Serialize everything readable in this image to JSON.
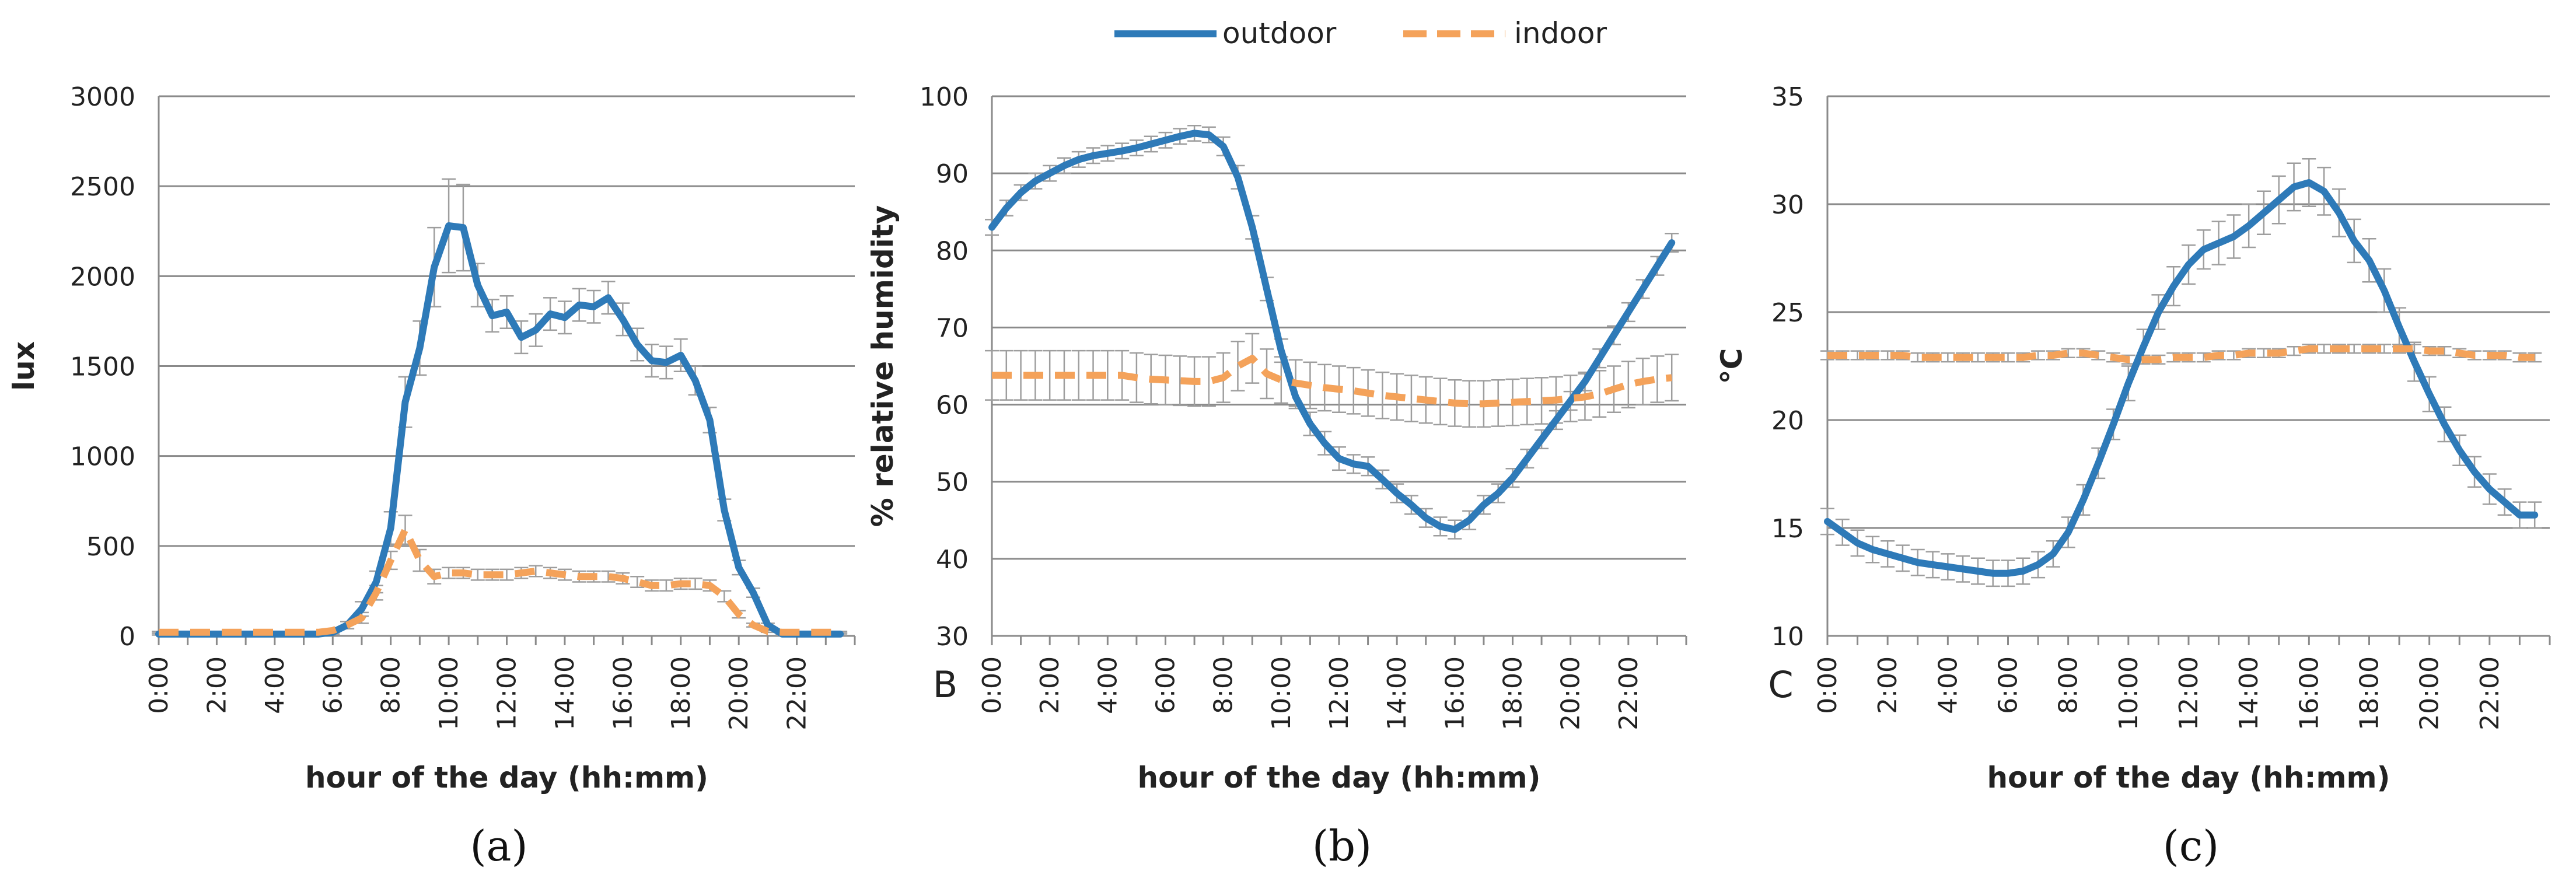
{
  "legend": {
    "items": [
      {
        "label": "outdoor",
        "color": "#2e7ab8",
        "style": "solid"
      },
      {
        "label": "indoor",
        "color": "#f4a25a",
        "style": "dashed"
      }
    ]
  },
  "chart_data": [
    {
      "type": "line",
      "caption": "(a)",
      "corner_label": "",
      "ylabel": "lux",
      "xlabel": "hour of the day (hh:mm)",
      "ylim": [
        0,
        3000
      ],
      "yticks": [
        0,
        500,
        1000,
        1500,
        2000,
        2500,
        3000
      ],
      "x_hours": [
        0,
        0.5,
        1,
        1.5,
        2,
        2.5,
        3,
        3.5,
        4,
        4.5,
        5,
        5.5,
        6,
        6.5,
        7,
        7.5,
        8,
        8.5,
        9,
        9.5,
        10,
        10.5,
        11,
        11.5,
        12,
        12.5,
        13,
        13.5,
        14,
        14.5,
        15,
        15.5,
        16,
        16.5,
        17,
        17.5,
        18,
        18.5,
        19,
        19.5,
        20,
        20.5,
        21,
        21.5,
        22,
        22.5,
        23,
        23.5
      ],
      "xtick_labels": [
        "0:00",
        "2:00",
        "4:00",
        "6:00",
        "8:00",
        "10:00",
        "12:00",
        "14:00",
        "16:00",
        "18:00",
        "20:00",
        "22:00"
      ],
      "series": [
        {
          "name": "outdoor",
          "values": [
            10,
            10,
            10,
            10,
            10,
            10,
            10,
            10,
            10,
            10,
            10,
            10,
            20,
            60,
            150,
            300,
            600,
            1300,
            1600,
            2050,
            2280,
            2270,
            1950,
            1780,
            1800,
            1660,
            1700,
            1790,
            1770,
            1840,
            1830,
            1880,
            1760,
            1620,
            1530,
            1520,
            1560,
            1420,
            1200,
            700,
            380,
            240,
            60,
            10,
            10,
            10,
            10,
            10
          ],
          "errors": [
            5,
            5,
            5,
            5,
            5,
            5,
            5,
            5,
            5,
            5,
            5,
            5,
            10,
            20,
            40,
            60,
            90,
            140,
            150,
            220,
            260,
            240,
            120,
            90,
            90,
            90,
            90,
            90,
            90,
            90,
            90,
            90,
            90,
            90,
            90,
            90,
            90,
            80,
            70,
            60,
            40,
            25,
            10,
            5,
            5,
            5,
            5,
            5
          ]
        },
        {
          "name": "indoor",
          "values": [
            20,
            20,
            20,
            20,
            20,
            20,
            20,
            20,
            20,
            20,
            20,
            20,
            30,
            60,
            100,
            240,
            420,
            590,
            420,
            330,
            350,
            350,
            340,
            340,
            340,
            350,
            360,
            350,
            340,
            330,
            330,
            330,
            320,
            300,
            280,
            280,
            290,
            290,
            280,
            220,
            120,
            60,
            25,
            20,
            20,
            20,
            20,
            20
          ],
          "errors": [
            5,
            5,
            5,
            5,
            5,
            5,
            5,
            5,
            5,
            5,
            5,
            5,
            10,
            20,
            30,
            40,
            50,
            80,
            60,
            40,
            30,
            30,
            30,
            30,
            30,
            30,
            30,
            30,
            30,
            30,
            30,
            30,
            30,
            30,
            30,
            30,
            30,
            30,
            30,
            30,
            20,
            10,
            5,
            5,
            5,
            5,
            5,
            5
          ]
        }
      ]
    },
    {
      "type": "line",
      "caption": "(b)",
      "corner_label": "B",
      "ylabel": "% relative humidity",
      "xlabel": "hour of the day (hh:mm)",
      "ylim": [
        30,
        100
      ],
      "yticks": [
        30,
        40,
        50,
        60,
        70,
        80,
        90,
        100
      ],
      "x_hours": [
        0,
        0.5,
        1,
        1.5,
        2,
        2.5,
        3,
        3.5,
        4,
        4.5,
        5,
        5.5,
        6,
        6.5,
        7,
        7.5,
        8,
        8.5,
        9,
        9.5,
        10,
        10.5,
        11,
        11.5,
        12,
        12.5,
        13,
        13.5,
        14,
        14.5,
        15,
        15.5,
        16,
        16.5,
        17,
        17.5,
        18,
        18.5,
        19,
        19.5,
        20,
        20.5,
        21,
        21.5,
        22,
        22.5,
        23,
        23.5
      ],
      "xtick_labels": [
        "0:00",
        "2:00",
        "4:00",
        "6:00",
        "8:00",
        "10:00",
        "12:00",
        "14:00",
        "16:00",
        "18:00",
        "20:00",
        "22:00"
      ],
      "series": [
        {
          "name": "outdoor",
          "values": [
            83,
            85.5,
            87.5,
            89,
            90,
            91,
            91.8,
            92.3,
            92.6,
            92.9,
            93.3,
            93.8,
            94.3,
            94.8,
            95.2,
            95,
            93.5,
            89.5,
            83,
            75,
            67,
            61,
            57.5,
            55,
            53,
            52.3,
            52,
            50.3,
            48.5,
            47,
            45.3,
            44.2,
            43.8,
            45,
            47,
            48.5,
            50.5,
            53,
            55.5,
            58,
            60.5,
            63,
            66,
            69,
            72,
            75,
            78,
            81
          ],
          "errors": [
            1,
            1,
            1,
            1,
            1,
            1,
            1,
            1,
            1,
            1,
            1,
            1,
            1,
            1,
            1,
            1,
            1.2,
            1.5,
            1.5,
            1.5,
            1.5,
            1.5,
            1.5,
            1.5,
            1.5,
            1.2,
            1.2,
            1.2,
            1.2,
            1.2,
            1.2,
            1.2,
            1.2,
            1.2,
            1.2,
            1.2,
            1.2,
            1.2,
            1.2,
            1.2,
            1.2,
            1.2,
            1.2,
            1.2,
            1.2,
            1.2,
            1.2,
            1.2
          ]
        },
        {
          "name": "indoor",
          "values": [
            63.8,
            63.8,
            63.8,
            63.8,
            63.8,
            63.8,
            63.8,
            63.8,
            63.8,
            63.8,
            63.5,
            63.3,
            63.2,
            63.1,
            63,
            63,
            63.5,
            65,
            66,
            64,
            63.2,
            62.8,
            62.5,
            62.2,
            62,
            61.8,
            61.5,
            61.2,
            61,
            60.8,
            60.6,
            60.4,
            60.2,
            60.1,
            60.1,
            60.2,
            60.3,
            60.4,
            60.5,
            60.6,
            60.8,
            61,
            61.4,
            62,
            62.6,
            63,
            63.3,
            63.5
          ],
          "errors": [
            3.2,
            3.2,
            3.2,
            3.2,
            3.2,
            3.2,
            3.2,
            3.2,
            3.2,
            3.2,
            3.2,
            3.2,
            3.2,
            3.2,
            3.2,
            3.2,
            3.2,
            3.2,
            3.2,
            3.2,
            3,
            3,
            3,
            3,
            3,
            3,
            3,
            3,
            3,
            3,
            3,
            3,
            3,
            3,
            3,
            3,
            3,
            3,
            3,
            3,
            3,
            3,
            3,
            3,
            3,
            3,
            3,
            3
          ]
        }
      ]
    },
    {
      "type": "line",
      "caption": "(c)",
      "corner_label": "C",
      "ylabel": "°C",
      "xlabel": "hour of the day (hh:mm)",
      "ylim": [
        10,
        35
      ],
      "yticks": [
        10,
        15,
        20,
        25,
        30,
        35
      ],
      "x_hours": [
        0,
        0.5,
        1,
        1.5,
        2,
        2.5,
        3,
        3.5,
        4,
        4.5,
        5,
        5.5,
        6,
        6.5,
        7,
        7.5,
        8,
        8.5,
        9,
        9.5,
        10,
        10.5,
        11,
        11.5,
        12,
        12.5,
        13,
        13.5,
        14,
        14.5,
        15,
        15.5,
        16,
        16.5,
        17,
        17.5,
        18,
        18.5,
        19,
        19.5,
        20,
        20.5,
        21,
        21.5,
        22,
        22.5,
        23,
        23.5
      ],
      "xtick_labels": [
        "0:00",
        "2:00",
        "4:00",
        "6:00",
        "8:00",
        "10:00",
        "12:00",
        "14:00",
        "16:00",
        "18:00",
        "20:00",
        "22:00"
      ],
      "series": [
        {
          "name": "outdoor",
          "values": [
            15.3,
            14.8,
            14.3,
            14,
            13.8,
            13.6,
            13.4,
            13.3,
            13.2,
            13.1,
            13,
            12.9,
            12.9,
            13,
            13.3,
            13.8,
            14.8,
            16.3,
            18,
            19.8,
            21.7,
            23.4,
            25,
            26.2,
            27.2,
            27.9,
            28.2,
            28.5,
            29,
            29.6,
            30.2,
            30.8,
            31,
            30.6,
            29.6,
            28.3,
            27.4,
            26,
            24.3,
            22.7,
            21.2,
            19.8,
            18.6,
            17.6,
            16.8,
            16.2,
            15.6,
            15.6
          ],
          "errors": [
            0.6,
            0.6,
            0.6,
            0.6,
            0.6,
            0.6,
            0.6,
            0.6,
            0.6,
            0.6,
            0.6,
            0.6,
            0.6,
            0.6,
            0.6,
            0.6,
            0.7,
            0.7,
            0.7,
            0.7,
            0.8,
            0.8,
            0.8,
            0.9,
            0.9,
            0.9,
            1,
            1,
            1,
            1,
            1.1,
            1.1,
            1.1,
            1.1,
            1.1,
            1,
            1,
            1,
            0.9,
            0.9,
            0.8,
            0.8,
            0.7,
            0.7,
            0.7,
            0.6,
            0.6,
            0.6
          ]
        },
        {
          "name": "indoor",
          "values": [
            23,
            23,
            23,
            23,
            23,
            23,
            22.9,
            22.9,
            22.9,
            22.9,
            22.9,
            22.9,
            22.9,
            22.9,
            23,
            23,
            23.1,
            23.1,
            23,
            22.9,
            22.8,
            22.8,
            22.8,
            22.9,
            22.9,
            22.9,
            23,
            23,
            23.1,
            23.1,
            23.1,
            23.2,
            23.3,
            23.3,
            23.3,
            23.3,
            23.3,
            23.3,
            23.3,
            23.3,
            23.2,
            23.2,
            23.1,
            23,
            23,
            23,
            22.9,
            22.9
          ],
          "errors": [
            0.2,
            0.2,
            0.2,
            0.2,
            0.2,
            0.2,
            0.2,
            0.2,
            0.2,
            0.2,
            0.2,
            0.2,
            0.2,
            0.2,
            0.2,
            0.2,
            0.2,
            0.2,
            0.2,
            0.2,
            0.2,
            0.2,
            0.2,
            0.2,
            0.2,
            0.2,
            0.2,
            0.2,
            0.2,
            0.2,
            0.2,
            0.2,
            0.2,
            0.2,
            0.2,
            0.2,
            0.2,
            0.2,
            0.2,
            0.2,
            0.2,
            0.2,
            0.2,
            0.2,
            0.2,
            0.2,
            0.2,
            0.2
          ]
        }
      ]
    }
  ]
}
